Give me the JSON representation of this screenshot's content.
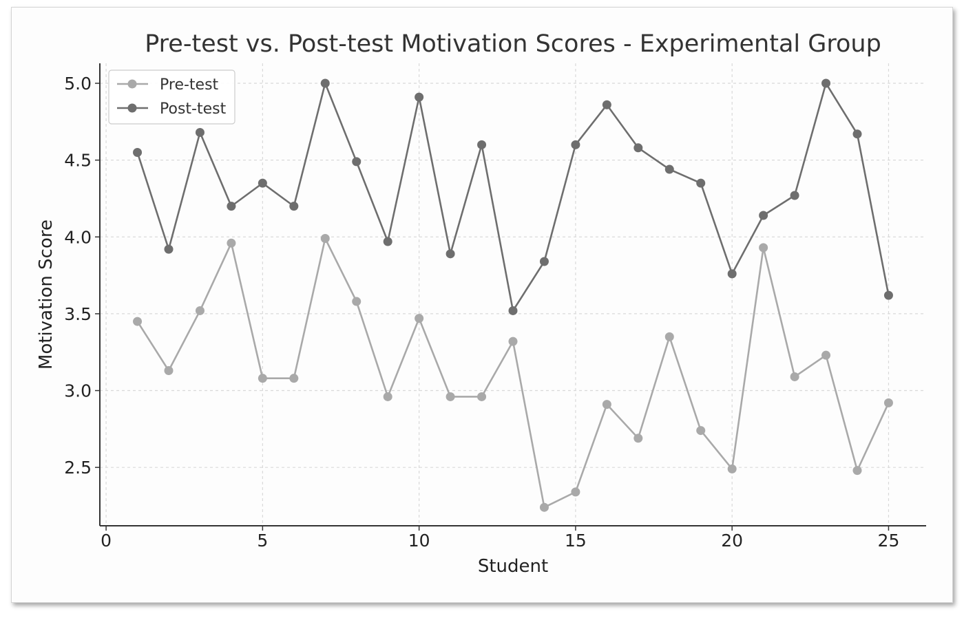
{
  "chart_data": {
    "type": "line",
    "title": "Pre-test vs. Post-test Motivation Scores - Experimental Group",
    "xlabel": "Student",
    "ylabel": "Motivation Score",
    "x": [
      1,
      2,
      3,
      4,
      5,
      6,
      7,
      8,
      9,
      10,
      11,
      12,
      13,
      14,
      15,
      16,
      17,
      18,
      19,
      20,
      21,
      22,
      23,
      24,
      25
    ],
    "xlim": [
      -0.2,
      26.2
    ],
    "ylim": [
      2.12,
      5.13
    ],
    "xticks": [
      0,
      5,
      10,
      15,
      20,
      25
    ],
    "xtick_labels": [
      "0",
      "5",
      "10",
      "15",
      "20",
      "25"
    ],
    "yticks": [
      2.5,
      3.0,
      3.5,
      4.0,
      4.5,
      5.0
    ],
    "ytick_labels": [
      "2.5",
      "3.0",
      "3.5",
      "4.0",
      "4.5",
      "5.0"
    ],
    "grid": true,
    "legend_position": "top-left",
    "series": [
      {
        "name": "Pre-test",
        "color": "#a9a9a9",
        "values": [
          3.45,
          3.13,
          3.52,
          3.96,
          3.08,
          3.08,
          3.99,
          3.58,
          2.96,
          3.47,
          2.96,
          2.96,
          3.32,
          2.24,
          2.34,
          2.91,
          2.69,
          3.35,
          2.74,
          2.49,
          3.93,
          3.09,
          3.23,
          2.48,
          2.92
        ]
      },
      {
        "name": "Post-test",
        "color": "#6e6e6e",
        "values": [
          4.55,
          3.92,
          4.68,
          4.2,
          4.35,
          4.2,
          5.0,
          4.49,
          3.97,
          4.91,
          3.89,
          4.6,
          3.52,
          3.84,
          4.6,
          4.86,
          4.58,
          4.44,
          4.35,
          3.76,
          4.14,
          4.27,
          5.0,
          4.67,
          3.62
        ]
      }
    ]
  }
}
